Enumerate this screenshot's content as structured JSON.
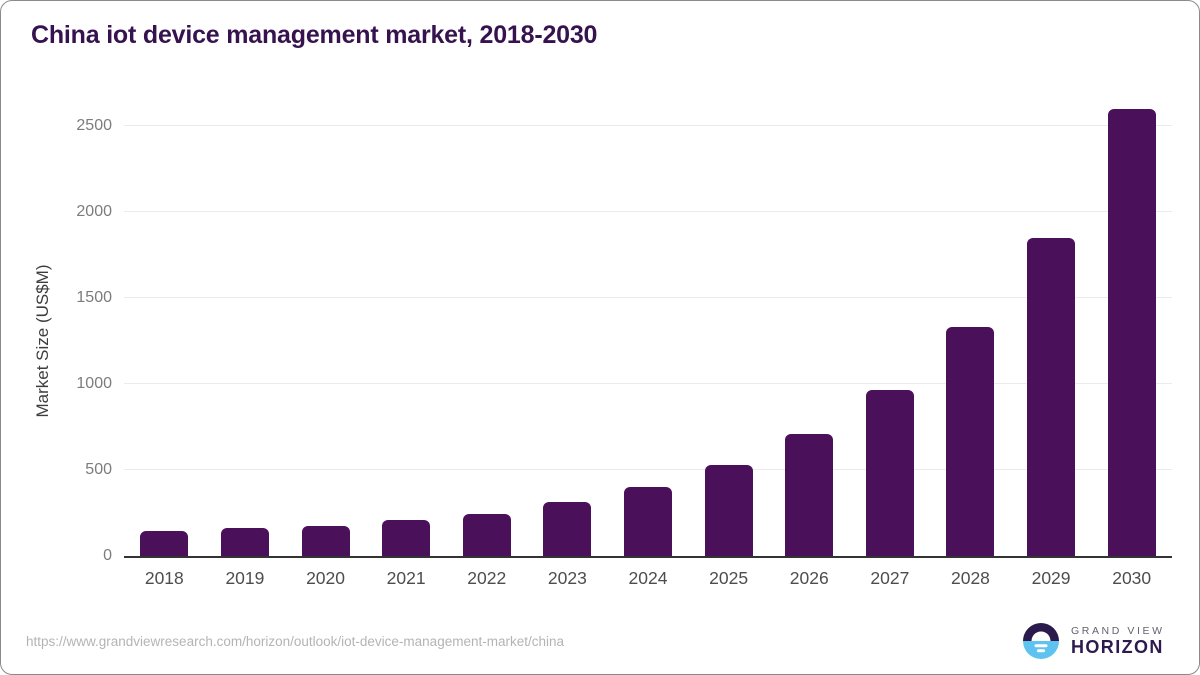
{
  "title": "China iot device management market, 2018-2030",
  "chart_data": {
    "type": "bar",
    "title": "China iot device management market, 2018-2030",
    "categories": [
      "2018",
      "2019",
      "2020",
      "2021",
      "2022",
      "2023",
      "2024",
      "2025",
      "2026",
      "2027",
      "2028",
      "2029",
      "2030"
    ],
    "values": [
      145,
      160,
      172,
      208,
      244,
      312,
      399,
      528,
      711,
      963,
      1332,
      1849,
      2595
    ],
    "xlabel": "",
    "ylabel": "Market Size (US$M)",
    "ylim": [
      0,
      2655
    ],
    "yticks": [
      0,
      500,
      1000,
      1500,
      2000,
      2500
    ],
    "grid": true,
    "legend": "none",
    "bar_color": "#4a1059"
  },
  "footer": {
    "source_url": "https://www.grandviewresearch.com/horizon/outlook/iot-device-management-market/china",
    "logo": {
      "line1": "GRAND VIEW",
      "line2": "HORIZON"
    }
  },
  "colors": {
    "bar": "#4a1059",
    "title_text": "#36124e",
    "gridline": "#ebebeb",
    "axis_line": "#333333",
    "y_tick_text": "#7c7c7c",
    "x_tick_text": "#4d4d4d",
    "url_text": "#b4b4b4",
    "logo_navy": "#2b1b4d",
    "logo_blue": "#5ec3ee"
  }
}
